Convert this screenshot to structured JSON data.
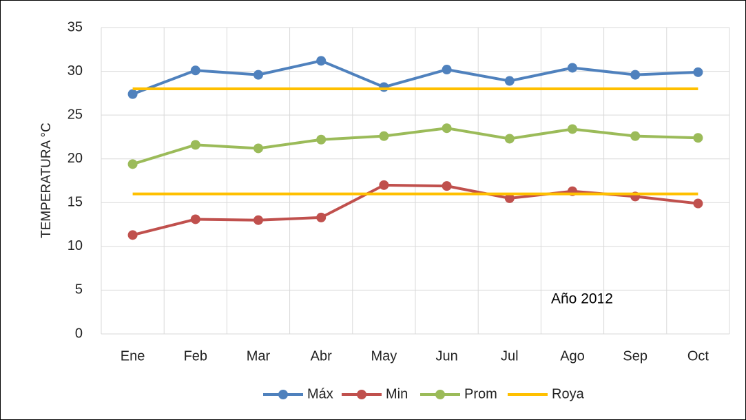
{
  "chart_data": {
    "type": "line",
    "ylabel": "TEMPERATURA °C",
    "annotation": "Año 2012",
    "categories": [
      "Ene",
      "Feb",
      "Mar",
      "Abr",
      "May",
      "Jun",
      "Jul",
      "Ago",
      "Sep",
      "Oct"
    ],
    "series": [
      {
        "name": "Máx",
        "color": "#4f81bd",
        "values": [
          27.4,
          30.1,
          29.6,
          31.2,
          28.2,
          30.2,
          28.9,
          30.4,
          29.6,
          29.9
        ]
      },
      {
        "name": "Min",
        "color": "#c0504d",
        "values": [
          11.3,
          13.1,
          13.0,
          13.3,
          17.0,
          16.9,
          15.5,
          16.3,
          15.7,
          14.9
        ]
      },
      {
        "name": "Prom",
        "color": "#9bbb59",
        "values": [
          19.4,
          21.6,
          21.2,
          22.2,
          22.6,
          23.5,
          22.3,
          23.4,
          22.6,
          22.4
        ]
      },
      {
        "name": "Roya",
        "color": "#ffc000",
        "levels": [
          28,
          16
        ]
      }
    ],
    "ylim": [
      0,
      35
    ],
    "yticks": [
      0,
      5,
      10,
      15,
      20,
      25,
      30,
      35
    ],
    "grid": true,
    "legend": "bottom"
  }
}
